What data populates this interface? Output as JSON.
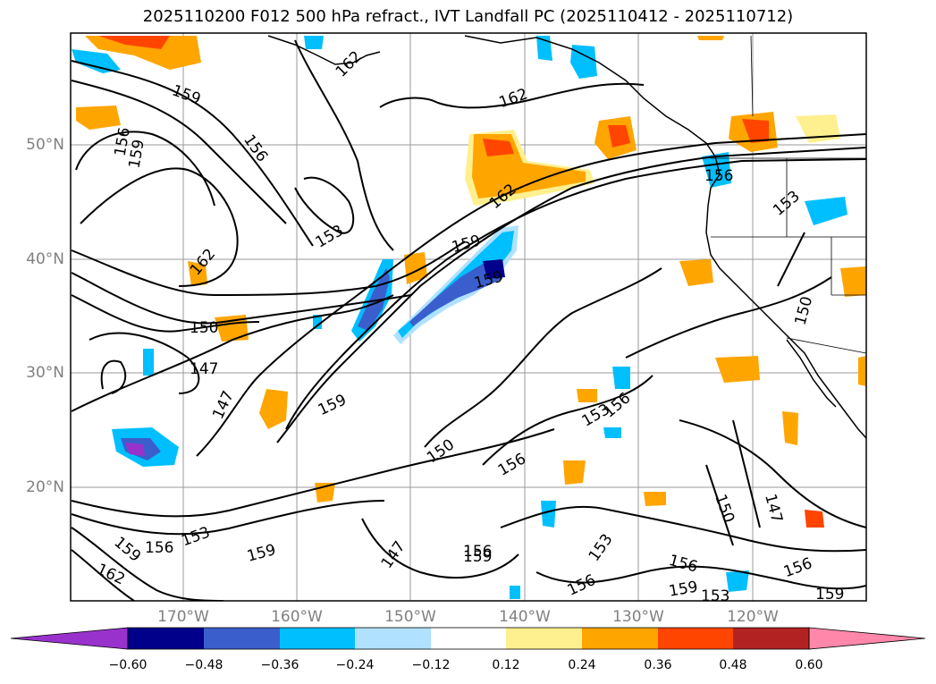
{
  "title": "2025110200 F012 500 hPa refract., IVT Landfall PC (2025110412 - 2025110712)",
  "latitude_labels": [
    "50°N",
    "40°N",
    "30°N",
    "20°N"
  ],
  "longitude_labels": [
    "170°W",
    "160°W",
    "150°W",
    "140°W",
    "130°W",
    "120°W"
  ],
  "colorbar": {
    "colors": [
      "#9932cc",
      "#00008b",
      "#3a5fcd",
      "#00bfff",
      "#b0e2ff",
      "#ffffff",
      "#fff08f",
      "#ffa500",
      "#ff4500",
      "#b22222",
      "#ff88aa"
    ],
    "tick_labels": [
      "−0.60",
      "−0.48",
      "−0.36",
      "−0.24",
      "−0.12",
      "0.12",
      "0.24",
      "0.36",
      "0.48",
      "0.60"
    ]
  },
  "contour_labels": [
    {
      "text": "159"
    },
    {
      "text": "156"
    },
    {
      "text": "159"
    },
    {
      "text": "156"
    },
    {
      "text": "153"
    },
    {
      "text": "162"
    },
    {
      "text": "162"
    },
    {
      "text": "162"
    },
    {
      "text": "159"
    },
    {
      "text": "159"
    },
    {
      "text": "150"
    },
    {
      "text": "147"
    },
    {
      "text": "147"
    },
    {
      "text": "159"
    },
    {
      "text": "150"
    },
    {
      "text": "156"
    },
    {
      "text": "156"
    },
    {
      "text": "153"
    },
    {
      "text": "150"
    },
    {
      "text": "147"
    },
    {
      "text": "156"
    },
    {
      "text": "159"
    },
    {
      "text": "153"
    },
    {
      "text": "159"
    },
    {
      "text": "162"
    },
    {
      "text": "147"
    },
    {
      "text": "156"
    },
    {
      "text": "159"
    },
    {
      "text": "153"
    },
    {
      "text": "156"
    },
    {
      "text": "156"
    },
    {
      "text": "159"
    },
    {
      "text": "153"
    },
    {
      "text": "156"
    },
    {
      "text": "159"
    },
    {
      "text": "156"
    },
    {
      "text": "150"
    },
    {
      "text": "153"
    },
    {
      "text": "162"
    }
  ]
}
